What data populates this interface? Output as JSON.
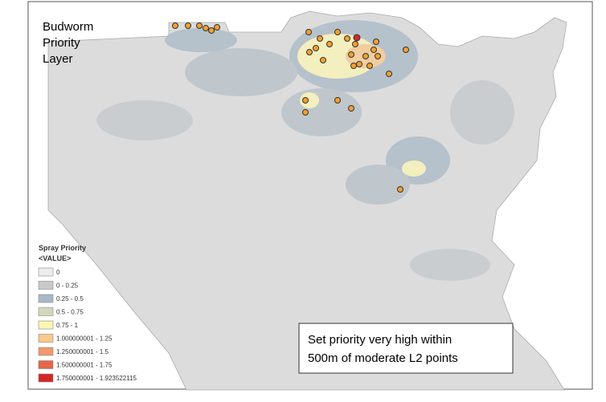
{
  "map": {
    "title_lines": [
      "Budworm",
      "Priority",
      "Layer"
    ],
    "legend": {
      "title": "Spray Priority",
      "field": "<VALUE>",
      "items": [
        {
          "label": "0",
          "color": "#ececec"
        },
        {
          "label": "0 - 0.25",
          "color": "#c9c9c9"
        },
        {
          "label": "0.25 - 0.5",
          "color": "#a8b8c6"
        },
        {
          "label": "0.5 - 0.75",
          "color": "#d3d8bc"
        },
        {
          "label": "0.75 - 1",
          "color": "#fbf6b4"
        },
        {
          "label": "1.000000001 - 1.25",
          "color": "#f8c88c"
        },
        {
          "label": "1.250000001 - 1.5",
          "color": "#f0996c"
        },
        {
          "label": "1.500000001 - 1.75",
          "color": "#e76548"
        },
        {
          "label": "1.750000001 - 1.923522115",
          "color": "#d42626"
        }
      ]
    },
    "note_lines": [
      "Set priority very high within",
      "500m of moderate L2 points"
    ]
  }
}
